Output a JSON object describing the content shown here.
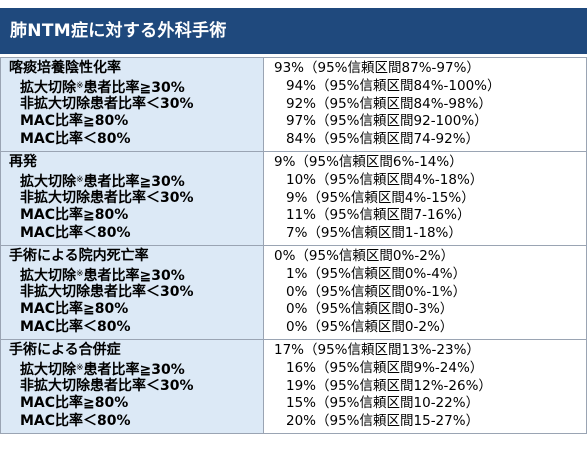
{
  "title": "肺NTM症に対する外科手術",
  "sections": [
    {
      "label": "喀痰培養陰性化率",
      "value": "93%（95%信頼区間87%-97%）",
      "rows": [
        {
          "pre": "拡大切除",
          "mark": "※",
          "post": "患者比率≧30%",
          "value": "94%（95%信頼区間84%-100%）"
        },
        {
          "pre": "非拡大切除患者比率＜30%",
          "mark": "",
          "post": "",
          "value": "92%（95%信頼区間84%-98%）"
        },
        {
          "pre": "MAC比率≧80%",
          "mark": "",
          "post": "",
          "value": "97%（95%信頼区間92-100%）"
        },
        {
          "pre": "MAC比率＜80%",
          "mark": "",
          "post": "",
          "value": "84%（95%信頼区間74-92%）"
        }
      ]
    },
    {
      "label": "再発",
      "value": "9%（95%信頼区間6%-14%）",
      "rows": [
        {
          "pre": "拡大切除",
          "mark": "※",
          "post": "患者比率≧30%",
          "value": "10%（95%信頼区間4%-18%）"
        },
        {
          "pre": "非拡大切除患者比率＜30%",
          "mark": "",
          "post": "",
          "value": "9%（95%信頼区間4%-15%）"
        },
        {
          "pre": "MAC比率≧80%",
          "mark": "",
          "post": "",
          "value": "11%（95%信頼区間7-16%）"
        },
        {
          "pre": "MAC比率＜80%",
          "mark": "",
          "post": "",
          "value": "7%（95%信頼区間1-18%）"
        }
      ]
    },
    {
      "label": "手術による院内死亡率",
      "value": "0%（95%信頼区間0%-2%）",
      "rows": [
        {
          "pre": "拡大切除",
          "mark": "※",
          "post": "患者比率≧30%",
          "value": "1%（95%信頼区間0%-4%）"
        },
        {
          "pre": "非拡大切除患者比率＜30%",
          "mark": "",
          "post": "",
          "value": "0%（95%信頼区間0%-1%）"
        },
        {
          "pre": "MAC比率≧80%",
          "mark": "",
          "post": "",
          "value": "0%（95%信頼区間0-3%）"
        },
        {
          "pre": "MAC比率＜80%",
          "mark": "",
          "post": "",
          "value": "0%（95%信頼区間0-2%）"
        }
      ]
    },
    {
      "label": "手術による合併症",
      "value": "17%（95%信頼区間13%-23%）",
      "rows": [
        {
          "pre": "拡大切除",
          "mark": "※",
          "post": "患者比率≧30%",
          "value": "16%（95%信頼区間9%-24%）"
        },
        {
          "pre": "非拡大切除患者比率＜30%",
          "mark": "",
          "post": "",
          "value": "19%（95%信頼区間12%-26%）"
        },
        {
          "pre": "MAC比率≧80%",
          "mark": "",
          "post": "",
          "value": "15%（95%信頼区間10-22%）"
        },
        {
          "pre": "MAC比率＜80%",
          "mark": "",
          "post": "",
          "value": "20%（95%信頼区間15-27%）"
        }
      ]
    }
  ]
}
